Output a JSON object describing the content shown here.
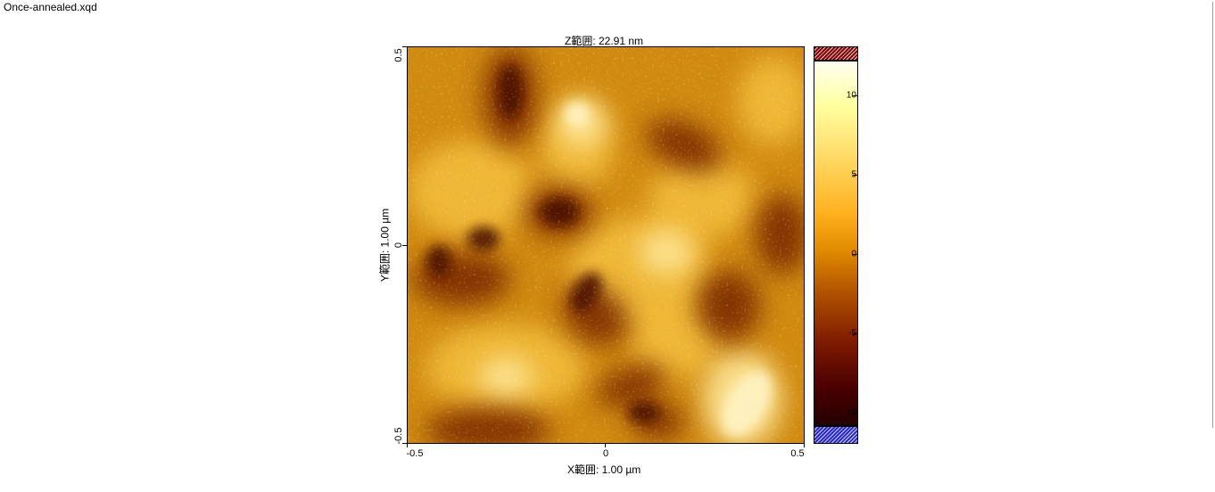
{
  "window": {
    "file_name": "Once-annealed.xqd"
  },
  "plot": {
    "z_range_label": "Z範囲:  22.91 nm",
    "x_range_label": "X範囲:  1.00 µm",
    "y_range_label": "Y範囲:  1.00 µm",
    "x_ticks": [
      "-0.5",
      "0",
      "0.5"
    ],
    "y_ticks": [
      "0.5",
      "0",
      "-0.5"
    ]
  },
  "colorbar": {
    "tick_labels": [
      "10",
      "5",
      "0",
      "-5",
      "-10"
    ],
    "over_range_color": "#8a0000",
    "under_range_color": "#2a2acc"
  },
  "colors": {
    "height_dark": "#3a0400",
    "height_mid": "#d08a10",
    "height_bright": "#fffacd"
  }
}
